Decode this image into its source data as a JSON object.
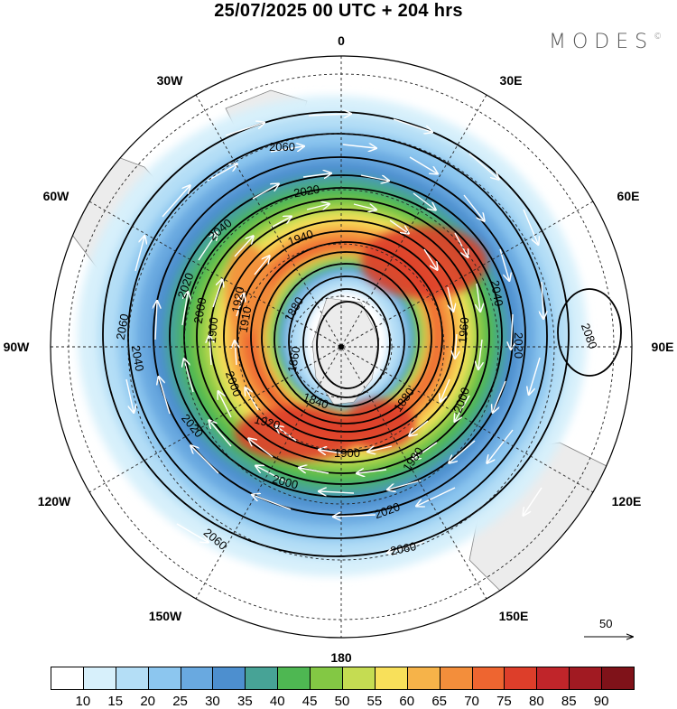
{
  "header": {
    "title": "25/07/2025  00 UTC  + 204 hrs",
    "brand": "MODES",
    "brand_mark": "©"
  },
  "map": {
    "projection": "south-polar-stereographic",
    "longitude_labels": [
      "0",
      "30E",
      "60E",
      "90E",
      "120E",
      "150E",
      "180",
      "150W",
      "120W",
      "90W",
      "60W",
      "30W"
    ],
    "contour_labels": [
      "2080",
      "2060",
      "2060",
      "2060",
      "2060",
      "2040",
      "2040",
      "2040",
      "2020",
      "2020",
      "2020",
      "2020",
      "2020",
      "2000",
      "2000",
      "2000",
      "2000",
      "1980",
      "1960",
      "1940",
      "1920",
      "1920",
      "1910",
      "1900",
      "1900",
      "1880",
      "1880",
      "1860",
      "1840"
    ]
  },
  "vector_reference": {
    "value": "50"
  },
  "colorbar": {
    "levels": [
      "10",
      "15",
      "20",
      "25",
      "30",
      "35",
      "40",
      "45",
      "50",
      "55",
      "60",
      "65",
      "70",
      "75",
      "80",
      "85",
      "90"
    ],
    "colors": [
      "#ffffff",
      "#d7f0fb",
      "#b4def6",
      "#8cc6ef",
      "#69a9e0",
      "#4d8fcf",
      "#47a396",
      "#4eb752",
      "#83c844",
      "#c5dc52",
      "#f8e05a",
      "#f6b349",
      "#f38e3b",
      "#ee6530",
      "#dd3e2a",
      "#c0252a",
      "#a11a22",
      "#7f1219"
    ]
  }
}
